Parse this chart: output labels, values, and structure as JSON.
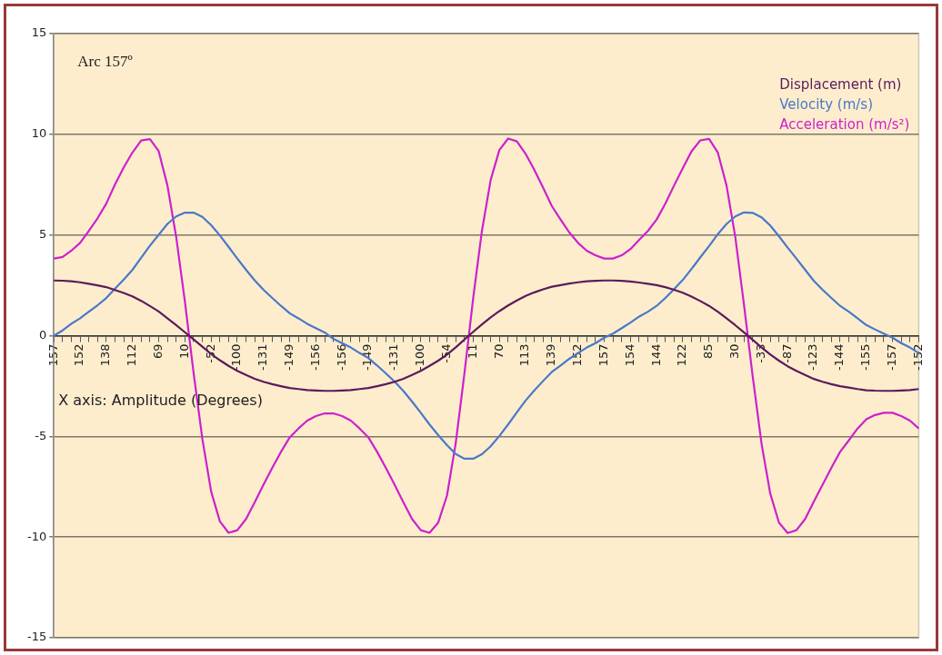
{
  "chart_data": {
    "type": "line",
    "xlabel": "X axis: Amplitude (Degrees)",
    "annotations": [
      "Arc 157º"
    ],
    "categories": [
      "157",
      null,
      null,
      "152",
      null,
      null,
      "138",
      null,
      null,
      "112",
      null,
      null,
      "69",
      null,
      null,
      "10",
      null,
      null,
      "-52",
      null,
      null,
      "-100",
      null,
      null,
      "-131",
      null,
      null,
      "-149",
      null,
      null,
      "-156",
      null,
      null,
      "-156",
      null,
      null,
      "-149",
      null,
      null,
      "-131",
      null,
      null,
      "-100",
      null,
      null,
      "-54",
      null,
      null,
      "11",
      null,
      null,
      "70",
      null,
      null,
      "113",
      null,
      null,
      "139",
      null,
      null,
      "152",
      null,
      null,
      "157",
      null,
      null,
      "154",
      null,
      null,
      "144",
      null,
      null,
      "122",
      null,
      null,
      "85",
      null,
      null,
      "30",
      null,
      null,
      "-33",
      null,
      null,
      "-87",
      null,
      null,
      "-123",
      null,
      null,
      "-144",
      null,
      null,
      "-155",
      null,
      null,
      "-157",
      null,
      null,
      "-152"
    ],
    "series": [
      {
        "name": "Displacement (m)",
        "color": "#5c1a5c",
        "values": [
          2.74,
          2.73,
          2.7,
          2.65,
          2.58,
          2.5,
          2.41,
          2.27,
          2.12,
          1.95,
          1.73,
          1.47,
          1.2,
          0.86,
          0.52,
          0.17,
          -0.19,
          -0.55,
          -0.91,
          -1.22,
          -1.5,
          -1.75,
          -1.95,
          -2.14,
          -2.29,
          -2.41,
          -2.51,
          -2.6,
          -2.65,
          -2.7,
          -2.72,
          -2.74,
          -2.74,
          -2.72,
          -2.7,
          -2.65,
          -2.6,
          -2.51,
          -2.41,
          -2.29,
          -2.14,
          -1.95,
          -1.75,
          -1.5,
          -1.24,
          -0.94,
          -0.58,
          -0.19,
          0.19,
          0.56,
          0.91,
          1.22,
          1.5,
          1.75,
          1.97,
          2.15,
          2.3,
          2.43,
          2.51,
          2.59,
          2.65,
          2.7,
          2.72,
          2.74,
          2.74,
          2.72,
          2.69,
          2.64,
          2.58,
          2.51,
          2.41,
          2.28,
          2.13,
          1.94,
          1.72,
          1.48,
          1.19,
          0.86,
          0.52,
          0.16,
          -0.21,
          -0.58,
          -0.93,
          -1.24,
          -1.52,
          -1.75,
          -1.95,
          -2.15,
          -2.29,
          -2.41,
          -2.51,
          -2.58,
          -2.65,
          -2.71,
          -2.73,
          -2.74,
          -2.74,
          -2.72,
          -2.7,
          -2.65
        ]
      },
      {
        "name": "Velocity (m/s)",
        "color": "#4a78c8",
        "values": [
          0,
          0.26,
          0.59,
          0.86,
          1.19,
          1.51,
          1.87,
          2.33,
          2.79,
          3.27,
          3.87,
          4.47,
          5.01,
          5.55,
          5.92,
          6.11,
          6.11,
          5.9,
          5.49,
          4.98,
          4.41,
          3.83,
          3.27,
          2.74,
          2.28,
          1.87,
          1.48,
          1.11,
          0.86,
          0.59,
          0.37,
          0.16,
          -0.16,
          -0.37,
          -0.59,
          -0.86,
          -1.11,
          -1.48,
          -1.87,
          -2.28,
          -2.74,
          -3.27,
          -3.83,
          -4.41,
          -4.94,
          -5.44,
          -5.88,
          -6.11,
          -6.11,
          -5.89,
          -5.49,
          -4.98,
          -4.41,
          -3.81,
          -3.22,
          -2.72,
          -2.25,
          -1.8,
          -1.48,
          -1.15,
          -0.86,
          -0.59,
          -0.37,
          -0.1,
          0.1,
          0.37,
          0.65,
          0.95,
          1.19,
          1.48,
          1.87,
          2.31,
          2.77,
          3.32,
          3.89,
          4.45,
          5.04,
          5.55,
          5.92,
          6.12,
          6.1,
          5.88,
          5.47,
          4.94,
          4.37,
          3.83,
          3.27,
          2.72,
          2.28,
          1.87,
          1.48,
          1.19,
          0.86,
          0.53,
          0.31,
          0.1,
          -0.1,
          -0.37,
          -0.59,
          -0.86
        ]
      },
      {
        "name": "Acceleration (m/s²)",
        "color": "#cc22cc",
        "values": [
          3.83,
          3.91,
          4.22,
          4.61,
          5.2,
          5.83,
          6.56,
          7.51,
          8.36,
          9.1,
          9.69,
          9.76,
          9.16,
          7.46,
          4.91,
          1.7,
          -1.87,
          -5.13,
          -7.73,
          -9.22,
          -9.79,
          -9.66,
          -9.1,
          -8.27,
          -7.4,
          -6.56,
          -5.77,
          -5.05,
          -4.61,
          -4.22,
          -3.99,
          -3.86,
          -3.86,
          -3.99,
          -4.22,
          -4.61,
          -5.05,
          -5.77,
          -6.56,
          -7.4,
          -8.27,
          -9.1,
          -9.66,
          -9.79,
          -9.28,
          -7.94,
          -5.34,
          -1.87,
          1.87,
          5.2,
          7.73,
          9.22,
          9.79,
          9.65,
          9.03,
          8.23,
          7.35,
          6.44,
          5.77,
          5.13,
          4.61,
          4.22,
          3.99,
          3.83,
          3.83,
          3.99,
          4.3,
          4.76,
          5.2,
          5.77,
          6.56,
          7.46,
          8.32,
          9.16,
          9.7,
          9.77,
          9.1,
          7.46,
          4.91,
          1.53,
          -2.04,
          -5.34,
          -7.83,
          -9.28,
          -9.8,
          -9.66,
          -9.1,
          -8.23,
          -7.4,
          -6.56,
          -5.77,
          -5.2,
          -4.61,
          -4.15,
          -3.94,
          -3.83,
          -3.83,
          -3.99,
          -4.22,
          -4.61
        ]
      }
    ],
    "ylim": [
      -15,
      15
    ],
    "yticks": [
      -15,
      -10,
      -5,
      0,
      5,
      10,
      15
    ],
    "grid": "y",
    "legend": "top right",
    "marker": "none",
    "line_style": "solid"
  }
}
